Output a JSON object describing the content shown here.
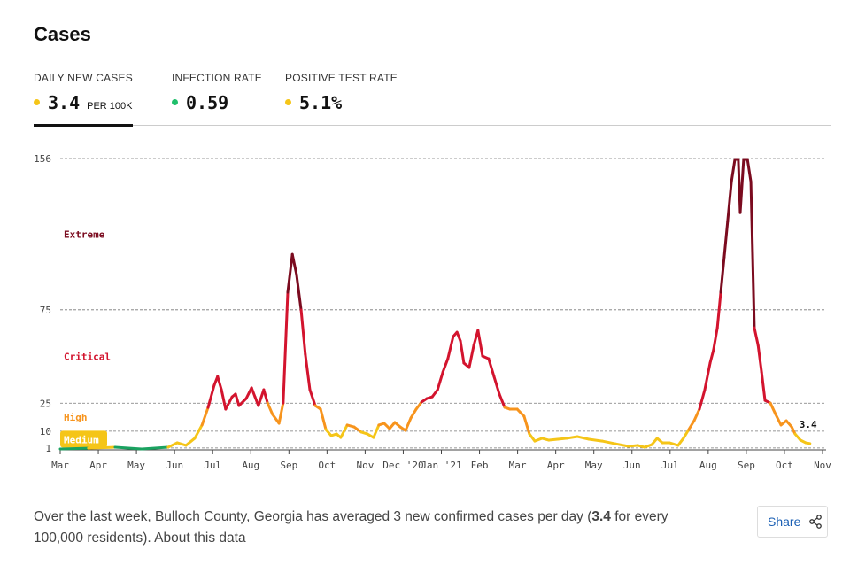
{
  "header": {
    "title": "Cases"
  },
  "tabs": [
    {
      "label": "DAILY NEW CASES",
      "value": "3.4",
      "unit": "PER 100K",
      "dot_color": "#f5c518",
      "active": true
    },
    {
      "label": "INFECTION RATE",
      "value": "0.59",
      "dot_color": "#1fbf6b",
      "active": false
    },
    {
      "label": "POSITIVE TEST RATE",
      "value": "5.1%",
      "dot_color": "#f5c518",
      "active": false
    }
  ],
  "chart_data": {
    "type": "line",
    "xlim": [
      0,
      20
    ],
    "xticks": [
      {
        "value": 0,
        "label": "Mar"
      },
      {
        "value": 1,
        "label": "Apr"
      },
      {
        "value": 2,
        "label": "May"
      },
      {
        "value": 3,
        "label": "Jun"
      },
      {
        "value": 4,
        "label": "Jul"
      },
      {
        "value": 5,
        "label": "Aug"
      },
      {
        "value": 6,
        "label": "Sep"
      },
      {
        "value": 7,
        "label": "Oct"
      },
      {
        "value": 8,
        "label": "Nov"
      },
      {
        "value": 9,
        "label": "Dec '20"
      },
      {
        "value": 10,
        "label": "Jan '21"
      },
      {
        "value": 11,
        "label": "Feb"
      },
      {
        "value": 12,
        "label": "Mar"
      },
      {
        "value": 13,
        "label": "Apr"
      },
      {
        "value": 14,
        "label": "May"
      },
      {
        "value": 15,
        "label": "Jun"
      },
      {
        "value": 16,
        "label": "Jul"
      },
      {
        "value": 17,
        "label": "Aug"
      },
      {
        "value": 18,
        "label": "Sep"
      },
      {
        "value": 19,
        "label": "Oct"
      },
      {
        "value": 20,
        "label": "Nov"
      }
    ],
    "ylim": [
      0,
      156
    ],
    "yticks": [
      1,
      10,
      25,
      75,
      156
    ],
    "grid": true,
    "levels": [
      {
        "name": "Medium",
        "min": 1,
        "color": "#f5c518"
      },
      {
        "name": "High",
        "min": 10,
        "color": "#f7941d"
      },
      {
        "name": "Critical",
        "min": 25,
        "color": "#d3142e"
      },
      {
        "name": "Extreme",
        "min": 75,
        "color": "#7b0b1f"
      }
    ],
    "below_color": "#1aa260",
    "series": [
      {
        "name": "Daily new cases per 100K",
        "x": [
          0,
          0.74,
          1.44,
          2.14,
          2.83,
          3.07,
          3.3,
          3.53,
          3.72,
          3.88,
          4.04,
          4.13,
          4.23,
          4.34,
          4.51,
          4.6,
          4.69,
          4.88,
          5.02,
          5.11,
          5.2,
          5.34,
          5.44,
          5.57,
          5.74,
          5.85,
          5.97,
          6.09,
          6.2,
          6.32,
          6.43,
          6.55,
          6.69,
          6.83,
          6.97,
          7.11,
          7.25,
          7.36,
          7.53,
          7.71,
          7.9,
          8.06,
          8.22,
          8.36,
          8.5,
          8.64,
          8.78,
          8.92,
          9.06,
          9.2,
          9.34,
          9.48,
          9.62,
          9.76,
          9.9,
          10.04,
          10.17,
          10.31,
          10.41,
          10.5,
          10.59,
          10.73,
          10.85,
          10.96,
          11.08,
          11.24,
          11.38,
          11.52,
          11.66,
          11.8,
          11.99,
          12.17,
          12.31,
          12.45,
          12.64,
          12.82,
          13.05,
          13.29,
          13.57,
          13.87,
          14.22,
          14.56,
          14.91,
          15.15,
          15.33,
          15.52,
          15.66,
          15.8,
          15.98,
          16.21,
          16.35,
          16.49,
          16.63,
          16.77,
          16.91,
          17.05,
          17.14,
          17.24,
          17.33,
          17.42,
          17.51,
          17.61,
          17.7,
          17.79,
          17.84,
          17.93,
          18.03,
          18.12,
          18.21,
          18.31,
          18.4,
          18.49,
          18.63,
          18.77,
          18.91,
          19.05,
          19.19,
          19.28,
          19.42,
          19.56,
          19.67
        ],
        "values": [
          0.5,
          0.9,
          1.4,
          0.5,
          1.4,
          3.8,
          2.4,
          6.2,
          13.3,
          22.7,
          34.6,
          39.3,
          32.2,
          21.8,
          28.4,
          29.9,
          23.7,
          27.5,
          33.2,
          28.4,
          23.7,
          32.2,
          25.1,
          19,
          14.2,
          25.1,
          84.4,
          104.7,
          93.9,
          74.9,
          51.2,
          32.2,
          23.7,
          21.8,
          10.9,
          7.6,
          8.5,
          6.6,
          13.3,
          12.3,
          9.5,
          8.5,
          6.6,
          13.3,
          14.2,
          11.4,
          14.7,
          12.3,
          10.4,
          17.1,
          21.8,
          25.6,
          27.5,
          28.4,
          32.2,
          41.7,
          48.8,
          60.7,
          63,
          58.3,
          46.5,
          44.1,
          55.9,
          64,
          50.2,
          48.8,
          39.3,
          29.9,
          22.8,
          21.8,
          21.8,
          18,
          8.5,
          4.7,
          6.2,
          5.2,
          5.7,
          6.2,
          7.1,
          5.7,
          4.7,
          3.3,
          1.9,
          2.4,
          1.4,
          2.8,
          6.2,
          3.8,
          3.8,
          2.4,
          6.2,
          10.9,
          15.6,
          21.8,
          32.2,
          46.5,
          53.6,
          65.4,
          84.4,
          103.3,
          122.3,
          143.6,
          155.5,
          155.5,
          127,
          155.5,
          155.5,
          143.6,
          65.4,
          55.9,
          41.7,
          26.5,
          25.1,
          19,
          13.3,
          15.6,
          12.3,
          8.5,
          5.2,
          3.8,
          3.4
        ]
      }
    ]
  },
  "footer": {
    "text_before": "Over the last week, Bulloch County, Georgia has averaged 3 new confirmed cases per day (",
    "bold": "3.4",
    "text_after": " for every 100,000 residents). ",
    "link": "About this data"
  },
  "share": {
    "label": "Share"
  }
}
